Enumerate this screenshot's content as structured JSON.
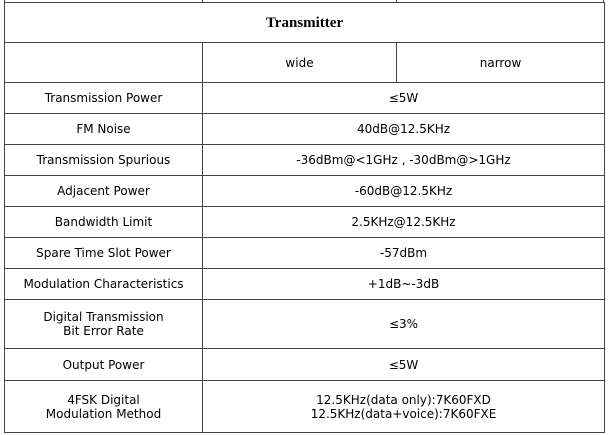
{
  "table": {
    "title": "Transmitter",
    "header": [
      "wide",
      "narrow"
    ],
    "rows": [
      {
        "label": [
          "Transmission Power"
        ],
        "value": [
          "≤5W"
        ]
      },
      {
        "label": [
          "FM Noise"
        ],
        "value": [
          "40dB@12.5KHz"
        ]
      },
      {
        "label": [
          "Transmission Spurious"
        ],
        "value": [
          "-36dBm@<1GHz , -30dBm@>1GHz"
        ]
      },
      {
        "label": [
          "Adjacent Power"
        ],
        "value": [
          "-60dB@12.5KHz"
        ]
      },
      {
        "label": [
          "Bandwidth Limit"
        ],
        "value": [
          "2.5KHz@12.5KHz"
        ]
      },
      {
        "label": [
          "Spare Time Slot Power"
        ],
        "value": [
          "-57dBm"
        ]
      },
      {
        "label": [
          "Modulation Characteristics"
        ],
        "value": [
          "+1dB~-3dB"
        ]
      },
      {
        "label": [
          "Digital Transmission",
          "Bit Error Rate"
        ],
        "value": [
          "≤3%"
        ]
      },
      {
        "label": [
          "Output Power"
        ],
        "value": [
          "≤5W"
        ]
      },
      {
        "label": [
          "4FSK Digital",
          "Modulation Method"
        ],
        "value": [
          "12.5KHz(data only):7K60FXD",
          "12.5KHz(data+voice):7K60FXE"
        ]
      }
    ]
  }
}
